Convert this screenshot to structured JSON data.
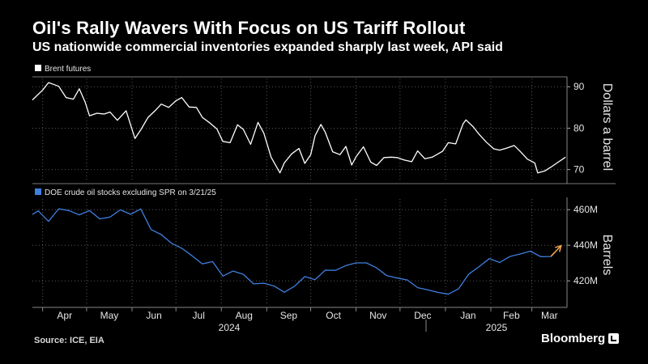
{
  "header": {
    "title": "Oil's Rally Wavers With Focus on US Tariff Rollout",
    "subtitle": "US nationwide commercial inventories expanded sharply last week, API said"
  },
  "footer": {
    "source": "Source: ICE, EIA",
    "brand": "Bloomberg"
  },
  "colors": {
    "background": "#000000",
    "brent_line": "#ffffff",
    "doe_line": "#3f7fe0",
    "arrow": "#f5a54a",
    "grid": "#5a5a5a"
  },
  "icons": [
    "legend-square-icon",
    "bloomberg-logo-icon",
    "arrow-annotation-icon"
  ],
  "chart_data": [
    {
      "type": "line",
      "legend": "top-left",
      "grid": true,
      "ylabel": "Dollars a barrel",
      "ylim": [
        67,
        92
      ],
      "yticks": [
        70,
        80,
        90
      ],
      "ytick_labels": [
        "70",
        "80",
        "90"
      ],
      "x_start": "2024-03-25",
      "x_end": "2025-03-25",
      "series": [
        {
          "name": "Brent futures",
          "x": [
            "2024-03-25",
            "2024-04-01",
            "2024-04-05",
            "2024-04-09",
            "2024-04-12",
            "2024-04-17",
            "2024-04-22",
            "2024-04-26",
            "2024-04-30",
            "2024-05-03",
            "2024-05-08",
            "2024-05-13",
            "2024-05-17",
            "2024-05-22",
            "2024-05-28",
            "2024-06-03",
            "2024-06-07",
            "2024-06-12",
            "2024-06-17",
            "2024-06-21",
            "2024-06-26",
            "2024-07-01",
            "2024-07-05",
            "2024-07-10",
            "2024-07-15",
            "2024-07-19",
            "2024-07-24",
            "2024-07-29",
            "2024-08-02",
            "2024-08-07",
            "2024-08-12",
            "2024-08-16",
            "2024-08-21",
            "2024-08-26",
            "2024-08-30",
            "2024-09-04",
            "2024-09-10",
            "2024-09-13",
            "2024-09-18",
            "2024-09-23",
            "2024-09-27",
            "2024-10-01",
            "2024-10-04",
            "2024-10-08",
            "2024-10-11",
            "2024-10-16",
            "2024-10-21",
            "2024-10-25",
            "2024-10-29",
            "2024-11-01",
            "2024-11-06",
            "2024-11-11",
            "2024-11-15",
            "2024-11-20",
            "2024-11-25",
            "2024-11-29",
            "2024-12-04",
            "2024-12-09",
            "2024-12-13",
            "2024-12-18",
            "2024-12-23",
            "2024-12-30",
            "2025-01-03",
            "2025-01-08",
            "2025-01-13",
            "2025-01-15",
            "2025-01-20",
            "2025-01-24",
            "2025-01-29",
            "2025-02-03",
            "2025-02-07",
            "2025-02-12",
            "2025-02-17",
            "2025-02-21",
            "2025-02-26",
            "2025-03-03",
            "2025-03-05",
            "2025-03-10",
            "2025-03-14",
            "2025-03-19",
            "2025-03-24"
          ],
          "values": [
            86.8,
            89.2,
            91.0,
            90.5,
            90.1,
            87.4,
            87.0,
            89.5,
            86.3,
            83.0,
            83.6,
            83.4,
            83.9,
            81.9,
            84.2,
            77.5,
            79.6,
            82.6,
            84.3,
            85.8,
            85.0,
            86.6,
            87.4,
            85.1,
            85.0,
            82.6,
            81.3,
            79.8,
            76.8,
            76.5,
            80.8,
            79.7,
            76.1,
            81.4,
            78.8,
            73.0,
            69.2,
            71.6,
            73.8,
            75.1,
            71.5,
            73.6,
            78.2,
            80.9,
            79.0,
            74.3,
            73.6,
            75.6,
            71.1,
            73.1,
            75.5,
            71.8,
            71.0,
            72.9,
            73.0,
            72.9,
            72.3,
            71.9,
            74.5,
            72.6,
            73.0,
            74.4,
            76.5,
            76.2,
            81.0,
            82.0,
            80.3,
            78.5,
            76.6,
            75.0,
            74.7,
            75.2,
            75.8,
            74.4,
            72.5,
            71.6,
            69.2,
            69.7,
            70.6,
            71.8,
            73.0
          ]
        }
      ]
    },
    {
      "type": "line",
      "legend": "top-left",
      "grid": true,
      "ylabel": "Barrels",
      "ylim": [
        406,
        466
      ],
      "yticks": [
        420,
        440,
        460
      ],
      "ytick_labels": [
        "420M",
        "440M",
        "460M"
      ],
      "x_start": "2024-03-25",
      "x_end": "2025-03-25",
      "xtick_labels": [
        "Apr",
        "May",
        "Jun",
        "Jul",
        "Aug",
        "Sep",
        "Oct",
        "Nov",
        "Dec",
        "Jan",
        "Feb",
        "Mar"
      ],
      "year_labels": [
        "2024",
        "2025"
      ],
      "annotation": "arrow",
      "series": [
        {
          "name": "DOE crude oil stocks excluding SPR on 3/21/25",
          "x": [
            "2024-03-22",
            "2024-03-29",
            "2024-04-05",
            "2024-04-12",
            "2024-04-19",
            "2024-04-26",
            "2024-05-03",
            "2024-05-10",
            "2024-05-17",
            "2024-05-24",
            "2024-05-31",
            "2024-06-07",
            "2024-06-14",
            "2024-06-21",
            "2024-06-28",
            "2024-07-05",
            "2024-07-12",
            "2024-07-19",
            "2024-07-26",
            "2024-08-02",
            "2024-08-09",
            "2024-08-16",
            "2024-08-23",
            "2024-08-30",
            "2024-09-06",
            "2024-09-13",
            "2024-09-20",
            "2024-09-27",
            "2024-10-04",
            "2024-10-11",
            "2024-10-18",
            "2024-10-25",
            "2024-11-01",
            "2024-11-08",
            "2024-11-15",
            "2024-11-22",
            "2024-11-29",
            "2024-12-06",
            "2024-12-13",
            "2024-12-20",
            "2024-12-27",
            "2025-01-03",
            "2025-01-10",
            "2025-01-17",
            "2025-01-24",
            "2025-01-31",
            "2025-02-07",
            "2025-02-14",
            "2025-02-21",
            "2025-02-28",
            "2025-03-07",
            "2025-03-14",
            "2025-03-21"
          ],
          "values": [
            457.3,
            459.3,
            453.4,
            460.5,
            459.5,
            457.1,
            459.5,
            454.8,
            455.8,
            459.9,
            457.4,
            460.4,
            448.8,
            446.0,
            441.1,
            438.3,
            434.1,
            429.5,
            430.8,
            422.7,
            425.5,
            423.7,
            418.3,
            418.7,
            417.1,
            413.6,
            417.0,
            422.4,
            420.7,
            426.0,
            425.9,
            428.6,
            430.1,
            430.1,
            427.3,
            422.9,
            421.6,
            420.5,
            416.2,
            414.9,
            413.5,
            412.5,
            415.6,
            423.8,
            428.0,
            432.5,
            430.3,
            433.7,
            435.1,
            436.7,
            433.6,
            433.7,
            439.8
          ]
        }
      ]
    }
  ]
}
